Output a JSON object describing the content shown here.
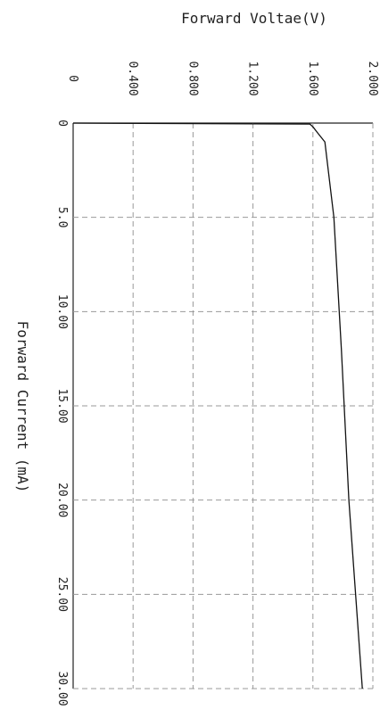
{
  "chart_data": {
    "type": "line",
    "title": "",
    "xlabel": "Forward Current (mA)",
    "ylabel": "Forward Voltae(V)",
    "x_ticks": [
      "0",
      "5.0",
      "10.00",
      "15.00",
      "20.00",
      "25.00",
      "30.00"
    ],
    "y_ticks": [
      "0",
      "0.400",
      "0.800",
      "1.200",
      "1.600",
      "2.000"
    ],
    "xlim": [
      0,
      30
    ],
    "ylim": [
      0,
      2.0
    ],
    "grid": true,
    "series": [
      {
        "x": [
          0,
          0.05,
          0.2,
          0.5,
          1,
          5,
          12,
          20,
          30
        ],
        "y": [
          0.0,
          1.58,
          1.6,
          1.63,
          1.68,
          1.74,
          1.79,
          1.84,
          1.93
        ]
      }
    ]
  }
}
